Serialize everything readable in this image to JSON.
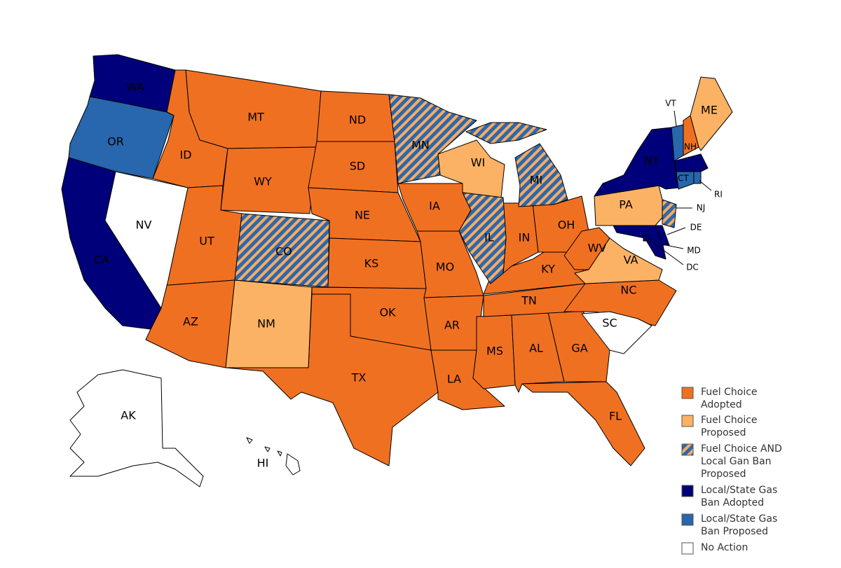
{
  "categories": [
    {
      "label": [
        "Fuel Choice",
        "Adopted"
      ],
      "color": "#f07021",
      "states": [
        "MT",
        "ID",
        "WY",
        "UT",
        "AZ",
        "ND",
        "SD",
        "NE",
        "KS",
        "OK",
        "TX",
        "IA",
        "MO",
        "AR",
        "LA",
        "MS",
        "AL",
        "GA",
        "FL",
        "TN",
        "KY",
        "IN",
        "OH",
        "WV",
        "NC",
        "NH"
      ]
    },
    {
      "label": [
        "Fuel Choice",
        "Proposed"
      ],
      "color": "#fbb264",
      "states": [
        "ME",
        "WI",
        "PA",
        "VA",
        "NM"
      ]
    },
    {
      "label": [
        "Fuel Choice AND",
        "Local Gan Ban",
        "Proposed"
      ],
      "color": "#2d68ac",
      "stripe_color": "#f6ab63",
      "states": [
        "MN",
        "MI",
        "IL",
        "CO",
        "NJ"
      ]
    },
    {
      "label": [
        "Local/State Gas",
        "Ban Adopted"
      ],
      "color": "#00007a",
      "states": [
        "WA",
        "CA",
        "NY",
        null,
        "MD",
        "DE",
        "DC"
      ]
    },
    {
      "label": [
        "Local/State Gas",
        "Ban Proposed"
      ],
      "color": "#2866ad",
      "states": [
        "OR",
        "VT",
        "CT",
        "RI"
      ]
    },
    {
      "label": [
        "No Action"
      ],
      "color": "#ffffff",
      "states": [
        "NV",
        "SC",
        "AK",
        "HI"
      ]
    }
  ]
}
